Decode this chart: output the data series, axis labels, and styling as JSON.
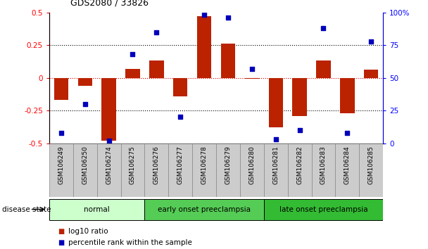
{
  "title": "GDS2080 / 33826",
  "samples": [
    "GSM106249",
    "GSM106250",
    "GSM106274",
    "GSM106275",
    "GSM106276",
    "GSM106277",
    "GSM106278",
    "GSM106279",
    "GSM106280",
    "GSM106281",
    "GSM106282",
    "GSM106283",
    "GSM106284",
    "GSM106285"
  ],
  "log10_ratio": [
    -0.17,
    -0.06,
    -0.48,
    0.07,
    0.13,
    -0.14,
    0.47,
    0.26,
    -0.01,
    -0.38,
    -0.29,
    0.13,
    -0.27,
    0.06
  ],
  "percentile_rank": [
    8,
    30,
    2,
    68,
    85,
    20,
    98,
    96,
    57,
    3,
    10,
    88,
    8,
    78
  ],
  "groups": [
    {
      "label": "normal",
      "start": 0,
      "end": 4,
      "color": "#ccffcc"
    },
    {
      "label": "early onset preeclampsia",
      "start": 4,
      "end": 9,
      "color": "#55cc55"
    },
    {
      "label": "late onset preeclampsia",
      "start": 9,
      "end": 14,
      "color": "#33bb33"
    }
  ],
  "ylim_left": [
    -0.5,
    0.5
  ],
  "ylim_right": [
    0,
    100
  ],
  "bar_color": "#bb2200",
  "dot_color": "#0000bb",
  "zero_line_color": "#cc0000",
  "legend_bar_label": "log10 ratio",
  "legend_dot_label": "percentile rank within the sample",
  "disease_state_label": "disease state",
  "background_color": "#ffffff",
  "right_ytick_labels": [
    "0",
    "25",
    "50",
    "75",
    "100%"
  ],
  "right_ytick_suffix": "%",
  "left_ytick_labels": [
    "-0.5",
    "-0.25",
    "0",
    "0.25",
    "0.5"
  ]
}
